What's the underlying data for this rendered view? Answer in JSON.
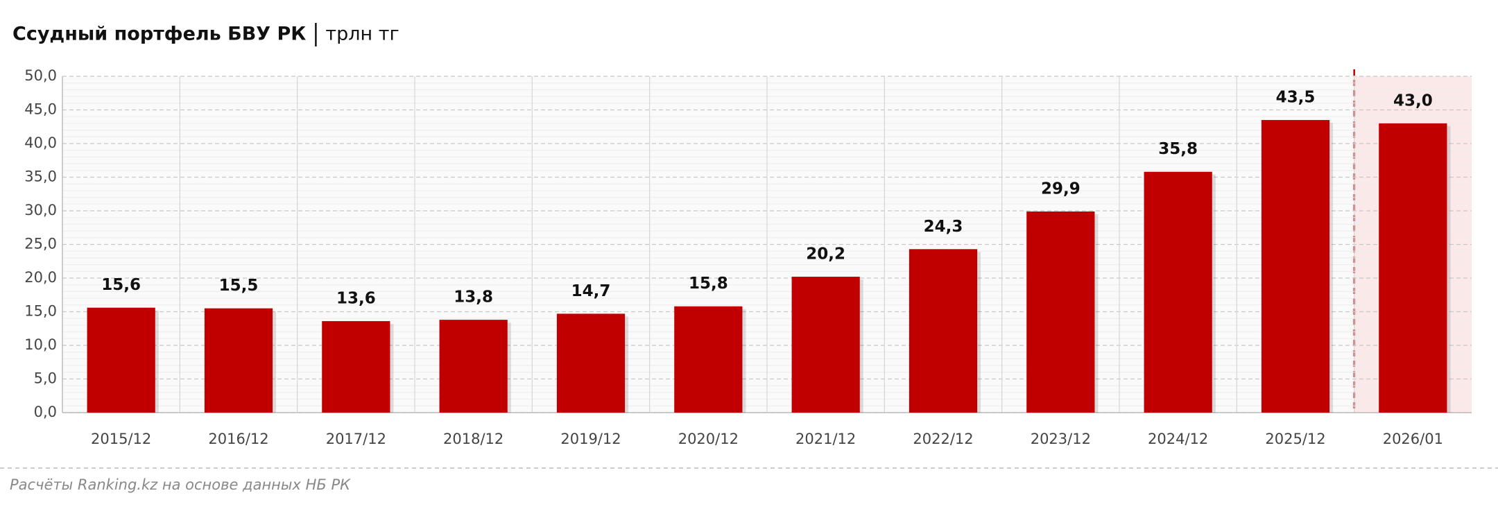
{
  "chart_data": {
    "type": "bar",
    "title": "Ссудный портфель БВУ РК",
    "subtitle": "трлн тг",
    "source": "Расчёты Ranking.kz на основе данных НБ РК",
    "categories": [
      "2015/12",
      "2016/12",
      "2017/12",
      "2018/12",
      "2019/12",
      "2020/12",
      "2021/12",
      "2022/12",
      "2023/12",
      "2024/12",
      "2025/12",
      "2026/01"
    ],
    "values": [
      15.6,
      15.5,
      13.6,
      13.8,
      14.7,
      15.8,
      20.2,
      24.3,
      29.9,
      35.8,
      43.5,
      43.0
    ],
    "value_labels": [
      "15,6",
      "15,5",
      "13,6",
      "13,8",
      "14,7",
      "15,8",
      "20,2",
      "24,3",
      "29,9",
      "35,8",
      "43,5",
      "43,0"
    ],
    "color": "#c00000",
    "highlight_color": "#fbe9e9",
    "ylim": [
      0,
      50
    ],
    "yticks": [
      {
        "value": 0,
        "label": "0,0"
      },
      {
        "value": 5,
        "label": "5,0"
      },
      {
        "value": 10,
        "label": "10,0"
      },
      {
        "value": 15,
        "label": "15,0"
      },
      {
        "value": 20,
        "label": "20,0"
      },
      {
        "value": 25,
        "label": "25,0"
      },
      {
        "value": 30,
        "label": "30,0"
      },
      {
        "value": 35,
        "label": "35,0"
      },
      {
        "value": 40,
        "label": "40,0"
      },
      {
        "value": 45,
        "label": "45,0"
      },
      {
        "value": 50,
        "label": "50,0"
      }
    ],
    "grid": true
  }
}
